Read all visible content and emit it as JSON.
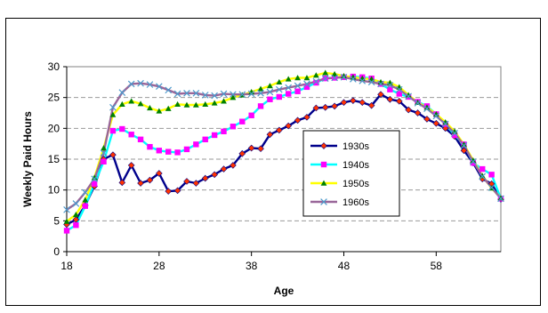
{
  "chart_data": {
    "type": "line",
    "title": "",
    "xlabel": "Age",
    "ylabel": "Weekly Paid Hours",
    "xlim": [
      18,
      65
    ],
    "ylim": [
      0,
      30
    ],
    "x_ticks": [
      18,
      28,
      38,
      48,
      58
    ],
    "y_ticks": [
      0,
      5,
      10,
      15,
      20,
      25,
      30
    ],
    "grid": "horizontal dashed",
    "legend_position": "inside-right",
    "x": [
      18,
      19,
      20,
      21,
      22,
      23,
      24,
      25,
      26,
      27,
      28,
      29,
      30,
      31,
      32,
      33,
      34,
      35,
      36,
      37,
      38,
      39,
      40,
      41,
      42,
      43,
      44,
      45,
      46,
      47,
      48,
      49,
      50,
      51,
      52,
      53,
      54,
      55,
      56,
      57,
      58,
      59,
      60,
      61,
      62,
      63,
      64,
      65
    ],
    "series": [
      {
        "name": "1930s",
        "color": "#00008B",
        "marker": "diamond",
        "marker_color": "#FF3300",
        "values": [
          4.4,
          5.2,
          7.5,
          10.6,
          15.0,
          15.7,
          11.2,
          14.0,
          11.1,
          11.6,
          12.7,
          9.8,
          9.9,
          11.4,
          11.1,
          11.9,
          12.5,
          13.4,
          14.0,
          15.9,
          16.8,
          16.7,
          19.0,
          19.7,
          20.4,
          21.3,
          21.8,
          23.3,
          23.4,
          23.6,
          24.2,
          24.5,
          24.2,
          23.7,
          25.5,
          24.7,
          24.4,
          23.0,
          22.5,
          21.5,
          20.8,
          20.0,
          18.7,
          16.4,
          14.4,
          11.8,
          11.0,
          8.5
        ]
      },
      {
        "name": "1940s",
        "color": "#00FFFF",
        "marker": "square",
        "marker_color": "#FF00FF",
        "values": [
          3.4,
          4.3,
          7.4,
          11.0,
          14.6,
          19.6,
          19.9,
          19.0,
          18.2,
          17.0,
          16.4,
          16.2,
          16.1,
          16.6,
          17.4,
          18.2,
          18.9,
          19.5,
          20.3,
          21.1,
          22.1,
          23.6,
          24.7,
          25.1,
          25.6,
          26.0,
          26.7,
          27.4,
          28.1,
          28.2,
          28.3,
          28.4,
          28.3,
          28.1,
          27.2,
          26.3,
          25.6,
          25.1,
          24.3,
          23.6,
          22.3,
          20.7,
          18.9,
          17.4,
          14.4,
          13.4,
          12.5,
          8.6
        ]
      },
      {
        "name": "1950s",
        "color": "#FFFF00",
        "marker": "triangle",
        "marker_color": "#008000",
        "values": [
          4.9,
          6.0,
          8.4,
          12.0,
          16.8,
          22.2,
          23.9,
          24.4,
          24.0,
          23.3,
          22.8,
          23.2,
          23.9,
          23.8,
          23.8,
          23.9,
          24.1,
          24.4,
          25.0,
          25.4,
          25.9,
          26.4,
          26.9,
          27.5,
          28.0,
          28.2,
          28.2,
          28.6,
          29.0,
          28.8,
          28.5,
          28.3,
          28.1,
          28.0,
          27.5,
          27.4,
          26.7,
          25.4,
          24.2,
          23.4,
          22.3,
          21.0,
          19.5,
          17.4,
          14.8,
          12.3,
          10.3,
          8.7
        ]
      },
      {
        "name": "1960s",
        "color": "#996699",
        "marker": "x",
        "marker_color": "#4C9ACC",
        "values": [
          6.8,
          7.8,
          9.6,
          11.8,
          16.0,
          23.4,
          25.8,
          27.2,
          27.3,
          27.1,
          26.8,
          26.2,
          25.6,
          25.7,
          25.7,
          25.4,
          25.3,
          25.6,
          25.5,
          25.5,
          25.6,
          25.7,
          25.9,
          26.3,
          26.6,
          26.9,
          27.2,
          27.6,
          28.1,
          28.2,
          28.3,
          28.0,
          27.7,
          27.5,
          27.2,
          27.0,
          26.3,
          25.2,
          24.1,
          23.2,
          22.0,
          20.7,
          19.2,
          17.2,
          14.6,
          12.2,
          10.4,
          8.6
        ]
      }
    ]
  }
}
